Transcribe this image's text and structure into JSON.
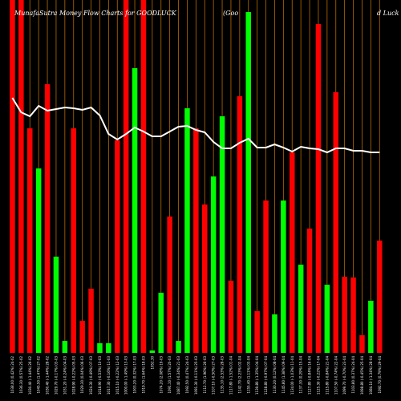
{
  "chart_data": {
    "type": "bar",
    "title_left": "MunafaSutra  Money Flow  Charts for GOODLUCK",
    "title_mid": "(Goo",
    "title_right": "d Luck",
    "ylim": [
      0,
      440
    ],
    "bar_colors": {
      "up": "#00ff00",
      "down": "#ff0000"
    },
    "line_color": "#ffffff",
    "grid_color": "#b86a00",
    "categories": [
      "1038.00 (0.42%) 24-02",
      "1036.30 (0.57%) 25-02",
      "1030.40 (-1.44%) 26-02",
      "1045.50 (1.47%) 27-02",
      "1030.40 (-1.44%) 28-02",
      "1029.70 (-0.17%) 03-03",
      "1031.20 (-0.24%) 04-03",
      "1028.90 (-0.22%) 05-03",
      "1029.30 (0.04%) 06-03",
      "1024.30 (-0.49%) 07-03",
      "1018.90 (-0.53%) 10-03",
      "1017.30 (-0.16%) 11-03",
      "1015.10 (-0.22%) 12-03",
      "1000.00 (-1.49%) 13-03",
      "1003.20 (0.32%) 17-03",
      "1019.70 (1.64%) 18-03",
      "1052.30",
      "1074.20 (2.08%) 19-03",
      "1091.10 (1.57%) 20-03",
      "1087.40 (-0.34%) 21-03",
      "1092.50 (0.47%) 24-03",
      "1091.30 (-0.11%) 25-03",
      "1112.70 (1.96%) 26-03",
      "1107.10 (-0.50%) 27-03",
      "1135.10 (2.53%) 28-03",
      "1117.80 (-1.52%) 01-04",
      "1142.70 (2.23%) 02-04",
      "1155.40 (1.11%) 03-04",
      "1139.80 (-1.35%) 04-04",
      "1128.80 (-0.97%) 07-04",
      "1130.20 (0.12%) 08-04",
      "1145.80 (1.38%) 09-04",
      "1134.00 (-1.03%) 11-04",
      "1137.30 (0.29%) 15-04",
      "1127.80 (-0.84%) 16-04",
      "1125.30 (-0.22%) 17-04",
      "1115.80 (-0.84%) 21-04",
      "1107.50 (-0.74%) 22-04",
      "1099.70 (-0.70%) 23-04",
      "1103.80 (0.37%) 24-04",
      "1098.80 (-0.45%) 25-04",
      "1084.10 (-1.34%) 28-04",
      "1092.70 (0.79%) 29-04"
    ],
    "directions": [
      "down",
      "down",
      "down",
      "up",
      "down",
      "up",
      "up",
      "down",
      "down",
      "down",
      "up",
      "up",
      "down",
      "down",
      "up",
      "down",
      "up",
      "up",
      "down",
      "up",
      "up",
      "down",
      "down",
      "up",
      "up",
      "down",
      "down",
      "up",
      "down",
      "down",
      "up",
      "up",
      "down",
      "up",
      "down",
      "down",
      "up",
      "down",
      "down",
      "down",
      "down",
      "up",
      "down"
    ],
    "values": [
      440,
      440,
      280,
      230,
      335,
      120,
      15,
      280,
      40,
      80,
      12,
      12,
      265,
      440,
      355,
      440,
      3,
      75,
      170,
      15,
      305,
      280,
      185,
      220,
      295,
      90,
      320,
      425,
      52,
      190,
      48,
      190,
      250,
      110,
      155,
      410,
      85,
      325,
      95,
      94,
      22,
      65,
      140
    ],
    "line": [
      318,
      300,
      295,
      308,
      302,
      304,
      306,
      305,
      303,
      306,
      296,
      273,
      266,
      273,
      281,
      276,
      270,
      270,
      276,
      282,
      283,
      278,
      275,
      263,
      255,
      255,
      262,
      267,
      256,
      256,
      260,
      256,
      251,
      257,
      255,
      254,
      250,
      255,
      255,
      252,
      252,
      250,
      250
    ]
  }
}
